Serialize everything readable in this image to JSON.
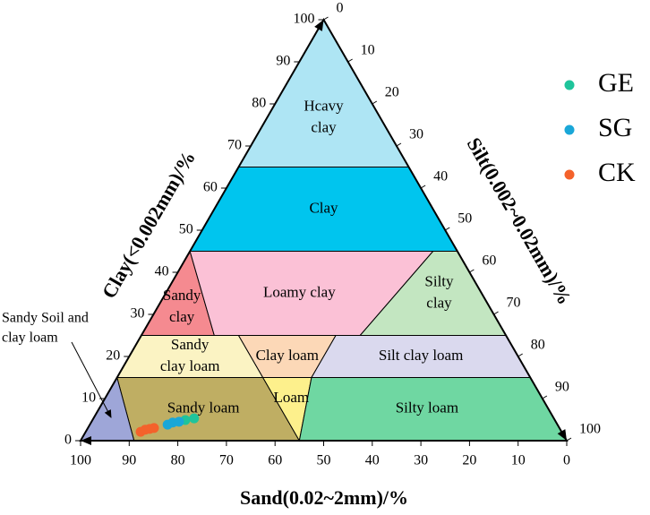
{
  "chart_data": {
    "type": "ternary",
    "axes": {
      "clay": {
        "label": "Clay(<0.002mm)/%",
        "ticks": [
          0,
          10,
          20,
          30,
          40,
          50,
          60,
          70,
          80,
          90,
          100
        ]
      },
      "silt": {
        "label": "Silt(0.002~0.02mm)/%",
        "ticks": [
          0,
          10,
          20,
          30,
          40,
          50,
          60,
          70,
          80,
          90,
          100
        ]
      },
      "sand": {
        "label": "Sand(0.02~2mm)/%",
        "ticks": [
          0,
          10,
          20,
          30,
          40,
          50,
          60,
          70,
          80,
          90,
          100
        ]
      }
    },
    "regions": [
      {
        "lines": [
          "Hcavy",
          "clay"
        ],
        "color": "#aee5f4",
        "vertices": [
          [
            0,
            0,
            100
          ],
          [
            35,
            0,
            65
          ],
          [
            0,
            35,
            65
          ]
        ]
      },
      {
        "lines": [
          "Clay"
        ],
        "color": "#00c5ee",
        "vertices": [
          [
            35,
            0,
            65
          ],
          [
            55,
            0,
            45
          ],
          [
            0,
            55,
            45
          ],
          [
            0,
            35,
            65
          ]
        ]
      },
      {
        "lines": [
          "Sandy",
          "clay"
        ],
        "color": "#f58a90",
        "vertices": [
          [
            55,
            0,
            45
          ],
          [
            75,
            0,
            25
          ],
          [
            60,
            15,
            25
          ]
        ]
      },
      {
        "lines": [
          "Loamy clay"
        ],
        "color": "#fbc1d6",
        "vertices": [
          [
            55,
            0,
            45
          ],
          [
            5,
            50,
            45
          ],
          [
            30,
            45,
            25
          ],
          [
            60,
            15,
            25
          ]
        ]
      },
      {
        "lines": [
          "Silty",
          "clay"
        ],
        "color": "#c3e6c1",
        "vertices": [
          [
            5,
            50,
            45
          ],
          [
            0,
            55,
            45
          ],
          [
            0,
            75,
            25
          ],
          [
            30,
            45,
            25
          ]
        ]
      },
      {
        "lines": [
          "Sandy",
          "clay loam"
        ],
        "color": "#fbf3c3",
        "vertices": [
          [
            75,
            0,
            25
          ],
          [
            85,
            0,
            15
          ],
          [
            55,
            30,
            15
          ],
          [
            55,
            20,
            25
          ]
        ]
      },
      {
        "lines": [
          "Clay loam"
        ],
        "color": "#fcd8b7",
        "vertices": [
          [
            55,
            20,
            25
          ],
          [
            55,
            30,
            15
          ],
          [
            45,
            40,
            15
          ],
          [
            35,
            40,
            25
          ]
        ]
      },
      {
        "lines": [
          "Silt clay loam"
        ],
        "color": "#dad9ee",
        "vertices": [
          [
            35,
            40,
            25
          ],
          [
            0,
            75,
            25
          ],
          [
            0,
            85,
            15
          ],
          [
            45,
            40,
            15
          ]
        ]
      },
      {
        "lines": [
          "Sandy loam"
        ],
        "color": "#bfae63",
        "vertices": [
          [
            85,
            0,
            15
          ],
          [
            55,
            30,
            15
          ],
          [
            55,
            45,
            0
          ],
          [
            89,
            11,
            0
          ]
        ]
      },
      {
        "lines": [
          "Loam"
        ],
        "color": "#fdf08c",
        "vertices": [
          [
            55,
            30,
            15
          ],
          [
            45,
            40,
            15
          ],
          [
            55,
            45,
            0
          ]
        ]
      },
      {
        "lines": [
          "Silty loam"
        ],
        "color": "#6fd7a2",
        "vertices": [
          [
            45,
            40,
            15
          ],
          [
            0,
            85,
            15
          ],
          [
            0,
            100,
            0
          ],
          [
            55,
            45,
            0
          ]
        ]
      },
      {
        "color": "#9ea6d8",
        "vertices": [
          [
            85,
            0,
            15
          ],
          [
            100,
            0,
            0
          ],
          [
            89,
            11,
            0
          ]
        ]
      }
    ],
    "annotation": [
      "Sandy Soil and",
      "clay loam"
    ],
    "series": [
      {
        "name": "GE",
        "color": "#1fc49b",
        "sand": [
          76.0,
          74.0
        ],
        "silt": [
          19.1,
          20.7
        ],
        "clay": [
          4.9,
          5.3
        ]
      },
      {
        "name": "SG",
        "color": "#1aa7d8",
        "sand": [
          80.2,
          78.9,
          77.5
        ],
        "silt": [
          16.0,
          16.8,
          18.0
        ],
        "clay": [
          3.8,
          4.3,
          4.5
        ]
      },
      {
        "name": "CK",
        "color": "#f4622b",
        "sand": [
          86.6,
          85.4,
          84.4,
          83.4
        ],
        "silt": [
          11.3,
          12.0,
          12.8,
          13.6
        ],
        "clay": [
          2.1,
          2.6,
          2.8,
          3.0
        ]
      }
    ]
  }
}
